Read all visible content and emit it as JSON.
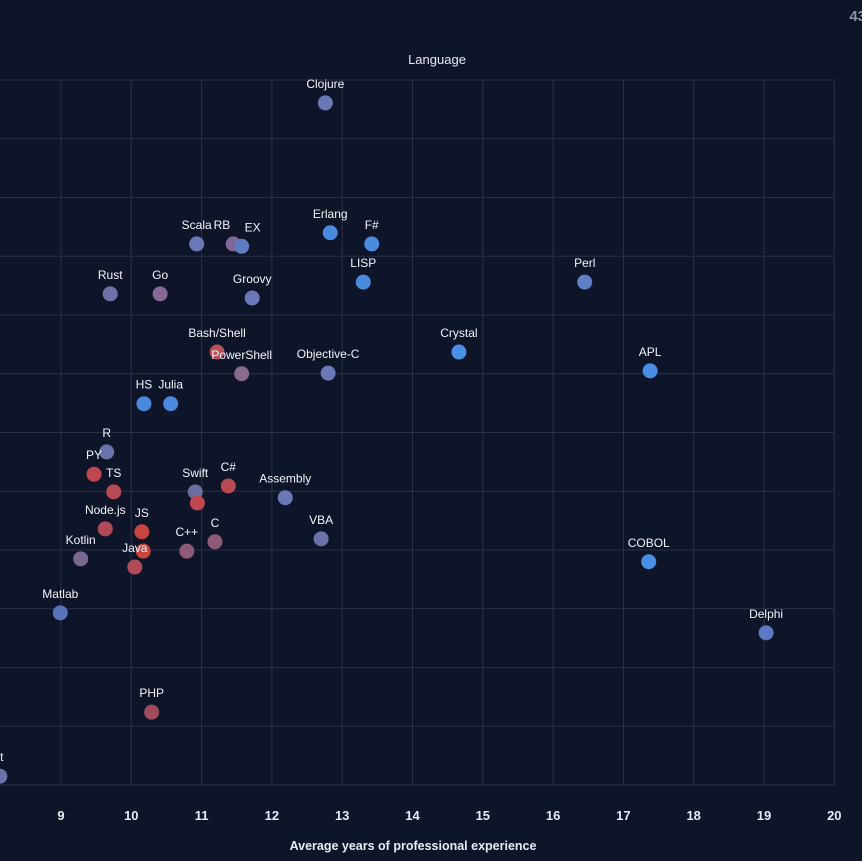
{
  "corner_text": "43",
  "chart_data": {
    "type": "scatter",
    "title": "Language",
    "xlabel": "Average years of professional experience",
    "ylabel": "",
    "xlim": [
      8.13,
      20
    ],
    "ylim": [
      0,
      12
    ],
    "x_ticks": [
      9,
      10,
      11,
      12,
      13,
      14,
      15,
      16,
      17,
      18,
      19,
      20
    ],
    "grid": true,
    "points": [
      {
        "label": "Clojure",
        "x": 12.76,
        "y": 11.61,
        "color": "#6a78b8"
      },
      {
        "label": "Scala",
        "x": 10.93,
        "y": 9.21,
        "color": "#6a78b8"
      },
      {
        "label": "RB",
        "x": 11.45,
        "y": 9.21,
        "color": "#7f6898"
      },
      {
        "label": "EX",
        "x": 11.57,
        "y": 9.17,
        "color": "#5f7cc0"
      },
      {
        "label": "Erlang",
        "x": 12.83,
        "y": 9.4,
        "color": "#4a8be0"
      },
      {
        "label": "F#",
        "x": 13.42,
        "y": 9.21,
        "color": "#4a8be0"
      },
      {
        "label": "Rust",
        "x": 9.7,
        "y": 8.36,
        "color": "#6e72a8"
      },
      {
        "label": "Go",
        "x": 10.41,
        "y": 8.36,
        "color": "#846a94"
      },
      {
        "label": "Groovy",
        "x": 11.72,
        "y": 8.29,
        "color": "#6a78b8"
      },
      {
        "label": "LISP",
        "x": 13.3,
        "y": 8.56,
        "color": "#4a8be0"
      },
      {
        "label": "Perl",
        "x": 16.45,
        "y": 8.56,
        "color": "#5f80c4"
      },
      {
        "label": "Bash/Shell",
        "x": 11.22,
        "y": 7.37,
        "color": "#b8505c"
      },
      {
        "label": "PowerShell",
        "x": 11.57,
        "y": 7.0,
        "color": "#8a6a8e"
      },
      {
        "label": "Objective-C",
        "x": 12.8,
        "y": 7.01,
        "color": "#6a78b8"
      },
      {
        "label": "Crystal",
        "x": 14.66,
        "y": 7.37,
        "color": "#4a8fe6"
      },
      {
        "label": "APL",
        "x": 17.38,
        "y": 7.05,
        "color": "#4a8fe6"
      },
      {
        "label": "HS",
        "x": 10.18,
        "y": 6.49,
        "color": "#4a88dc"
      },
      {
        "label": "Julia",
        "x": 10.56,
        "y": 6.49,
        "color": "#4a88dc"
      },
      {
        "label": "R",
        "x": 9.65,
        "y": 5.67,
        "color": "#6a72aa"
      },
      {
        "label": "PY",
        "x": 9.47,
        "y": 5.29,
        "color": "#c0474f"
      },
      {
        "label": "TS",
        "x": 9.75,
        "y": 4.99,
        "color": "#b84a54"
      },
      {
        "label": "Swift",
        "x": 10.91,
        "y": 4.99,
        "color": "#6a6e9e"
      },
      {
        "label": "",
        "x": 10.94,
        "y": 4.8,
        "color": "#c0474f"
      },
      {
        "label": "C#",
        "x": 11.38,
        "y": 5.09,
        "color": "#b84a54"
      },
      {
        "label": "Assembly",
        "x": 12.19,
        "y": 4.89,
        "color": "#6a78b8"
      },
      {
        "label": "Node.js",
        "x": 9.63,
        "y": 4.36,
        "color": "#b04a56"
      },
      {
        "label": "JS",
        "x": 10.15,
        "y": 4.31,
        "color": "#c8443f"
      },
      {
        "label": "",
        "x": 10.17,
        "y": 3.98,
        "color": "#c8443f"
      },
      {
        "label": "Java",
        "x": 10.05,
        "y": 3.71,
        "color": "#b04a56"
      },
      {
        "label": "C++",
        "x": 10.79,
        "y": 3.98,
        "color": "#8e5a76"
      },
      {
        "label": "C",
        "x": 11.19,
        "y": 4.14,
        "color": "#8e5a76"
      },
      {
        "label": "VBA",
        "x": 12.7,
        "y": 4.19,
        "color": "#6a72aa"
      },
      {
        "label": "Kotlin",
        "x": 9.28,
        "y": 3.85,
        "color": "#7a6892"
      },
      {
        "label": "COBOL",
        "x": 17.36,
        "y": 3.8,
        "color": "#4a8fe6"
      },
      {
        "label": "Matlab",
        "x": 8.99,
        "y": 2.93,
        "color": "#5a72b8"
      },
      {
        "label": "Delphi",
        "x": 19.03,
        "y": 2.59,
        "color": "#5a7ac4"
      },
      {
        "label": "PHP",
        "x": 10.29,
        "y": 1.24,
        "color": "#a04a5e"
      },
      {
        "label": "rt",
        "x": 8.13,
        "y": 0.15,
        "color": "#6a72aa"
      }
    ]
  }
}
